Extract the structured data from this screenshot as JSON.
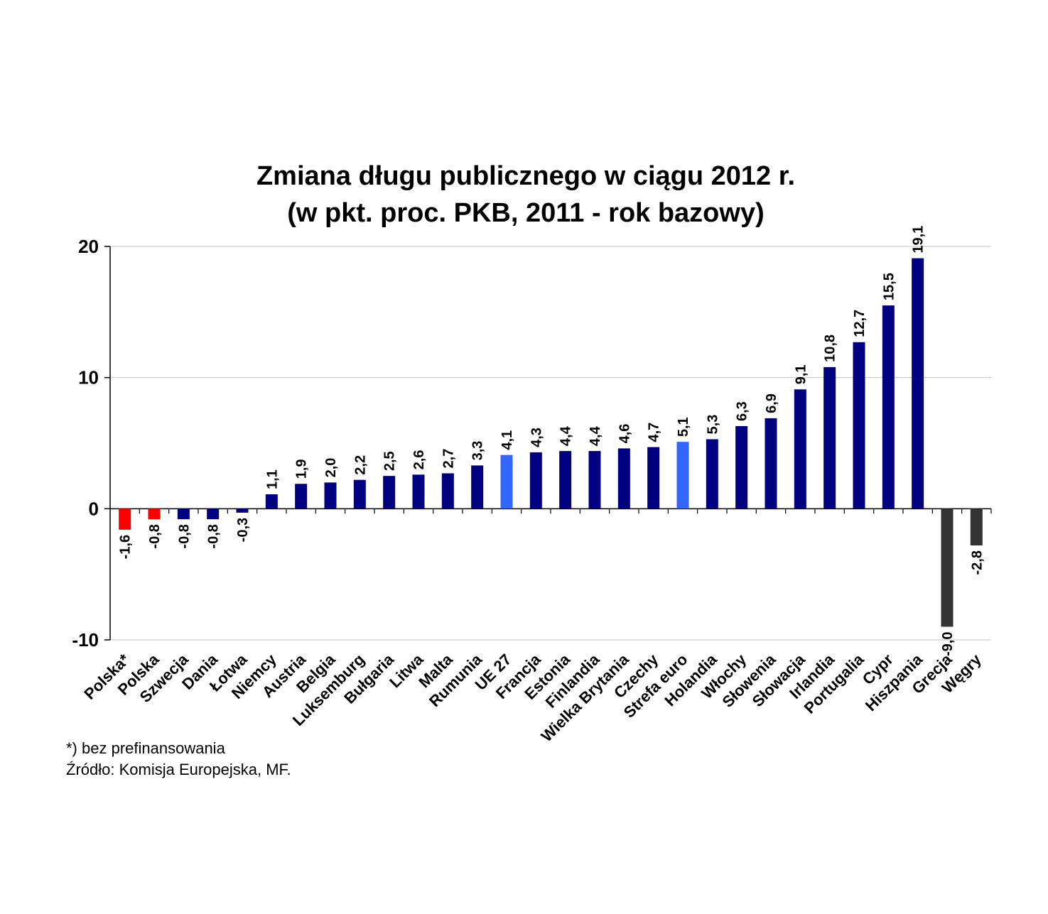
{
  "chart_data": {
    "type": "bar",
    "title": [
      "Zmiana długu publicznego w ciągu 2012 r.",
      "(w pkt. proc. PKB, 2011 - rok bazowy)"
    ],
    "xlabel": "",
    "ylabel": "",
    "ylim": [
      -10,
      20
    ],
    "yticks": [
      "-10",
      "0",
      "10",
      "20"
    ],
    "grid": true,
    "categories": [
      "Polska*",
      "Polska",
      "Szwecja",
      "Dania",
      "Łotwa",
      "Niemcy",
      "Austria",
      "Belgia",
      "Luksemburg",
      "Bułgaria",
      "Litwa",
      "Malta",
      "Rumunia",
      "UE 27",
      "Francja",
      "Estonia",
      "Finlandia",
      "Wielka Brytania",
      "Czechy",
      "Strefa euro",
      "Holandia",
      "Włochy",
      "Słowenia",
      "Słowacja",
      "Irlandia",
      "Portugalia",
      "Cypr",
      "Hiszpania",
      "Grecja",
      "Węgry"
    ],
    "values": [
      -1.6,
      -0.8,
      -0.8,
      -0.8,
      -0.3,
      1.1,
      1.9,
      2.0,
      2.2,
      2.5,
      2.6,
      2.7,
      3.3,
      4.1,
      4.3,
      4.4,
      4.4,
      4.6,
      4.7,
      5.1,
      5.3,
      6.3,
      6.9,
      9.1,
      10.8,
      12.7,
      15.5,
      19.1,
      -9.0,
      -2.8
    ],
    "value_labels": [
      "-1,6",
      "-0,8",
      "-0,8",
      "-0,8",
      "-0,3",
      "1,1",
      "1,9",
      "2,0",
      "2,2",
      "2,5",
      "2,6",
      "2,7",
      "3,3",
      "4,1",
      "4,3",
      "4,4",
      "4,4",
      "4,6",
      "4,7",
      "5,1",
      "5,3",
      "6,3",
      "6,9",
      "9,1",
      "10,8",
      "12,7",
      "15,5",
      "19,1",
      "-9,0",
      "-2,8"
    ],
    "bar_colors": [
      "#ff0000",
      "#ff0000",
      "#000080",
      "#000080",
      "#000080",
      "#000080",
      "#000080",
      "#000080",
      "#000080",
      "#000080",
      "#000080",
      "#000080",
      "#000080",
      "#3366ff",
      "#000080",
      "#000080",
      "#000080",
      "#000080",
      "#000080",
      "#3366ff",
      "#000080",
      "#000080",
      "#000080",
      "#000080",
      "#000080",
      "#000080",
      "#000080",
      "#000080",
      "#333333",
      "#333333"
    ]
  },
  "notes": {
    "footnote": "*) bez prefinansowania",
    "source": "Źródło: Komisja Europejska, MF."
  }
}
